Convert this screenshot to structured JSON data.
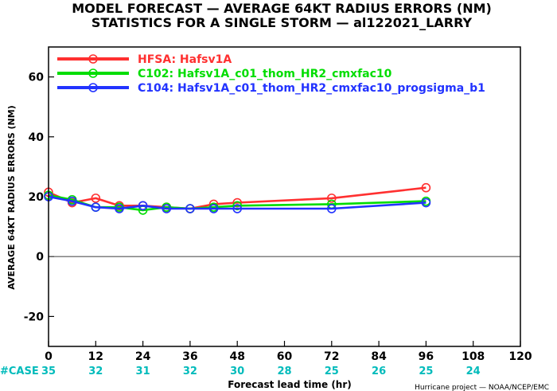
{
  "chart_data": {
    "type": "line",
    "title": "MODEL FORECAST — AVERAGE 64KT RADIUS ERRORS (NM)",
    "subtitle": "STATISTICS FOR A SINGLE STORM — al122021_LARRY",
    "xlabel": "Forecast lead time (hr)",
    "ylabel": "AVERAGE 64KT RADIUS ERRORS (NM)",
    "xlim": [
      0,
      120
    ],
    "ylim": [
      -30,
      70
    ],
    "x_ticks": [
      0,
      12,
      24,
      36,
      48,
      60,
      72,
      84,
      96,
      108,
      120
    ],
    "y_ticks": [
      -20,
      0,
      20,
      40,
      60
    ],
    "zero_line": true,
    "legend_position": "top-left",
    "series": [
      {
        "name": "HFSA: Hafsv1A",
        "color": "#ff3030",
        "x": [
          0,
          6,
          12,
          18,
          24,
          30,
          36,
          42,
          48,
          72,
          96
        ],
        "y": [
          21.5,
          18,
          19.5,
          17,
          17,
          16.5,
          16,
          17.5,
          18,
          19.5,
          23
        ]
      },
      {
        "name": "C102: Hafsv1A_c01_thom_HR2_cmxfac10",
        "color": "#00dd00",
        "x": [
          0,
          6,
          12,
          18,
          24,
          30,
          36,
          42,
          48,
          72,
          96
        ],
        "y": [
          20.5,
          19,
          16.5,
          16.5,
          15.5,
          16.5,
          16,
          16.5,
          17,
          17.5,
          18.5
        ]
      },
      {
        "name": "C104: Hafsv1A_c01_thom_HR2_cmxfac10_progsigma_b1",
        "color": "#2233ff",
        "x": [
          0,
          6,
          12,
          18,
          24,
          30,
          36,
          42,
          48,
          72,
          96
        ],
        "y": [
          20,
          18.5,
          16.5,
          16,
          17,
          16,
          16,
          16,
          16,
          16,
          18
        ]
      }
    ],
    "case_label": "#CASE",
    "case_color": "#00bbbb",
    "cases": [
      {
        "x": 0,
        "n": "35"
      },
      {
        "x": 12,
        "n": "32"
      },
      {
        "x": 24,
        "n": "31"
      },
      {
        "x": 36,
        "n": "32"
      },
      {
        "x": 48,
        "n": "30"
      },
      {
        "x": 60,
        "n": "28"
      },
      {
        "x": 72,
        "n": "25"
      },
      {
        "x": 84,
        "n": "26"
      },
      {
        "x": 96,
        "n": "25"
      },
      {
        "x": 108,
        "n": "24"
      }
    ],
    "credit": "Hurricane project — NOAA/NCEP/EMC"
  }
}
